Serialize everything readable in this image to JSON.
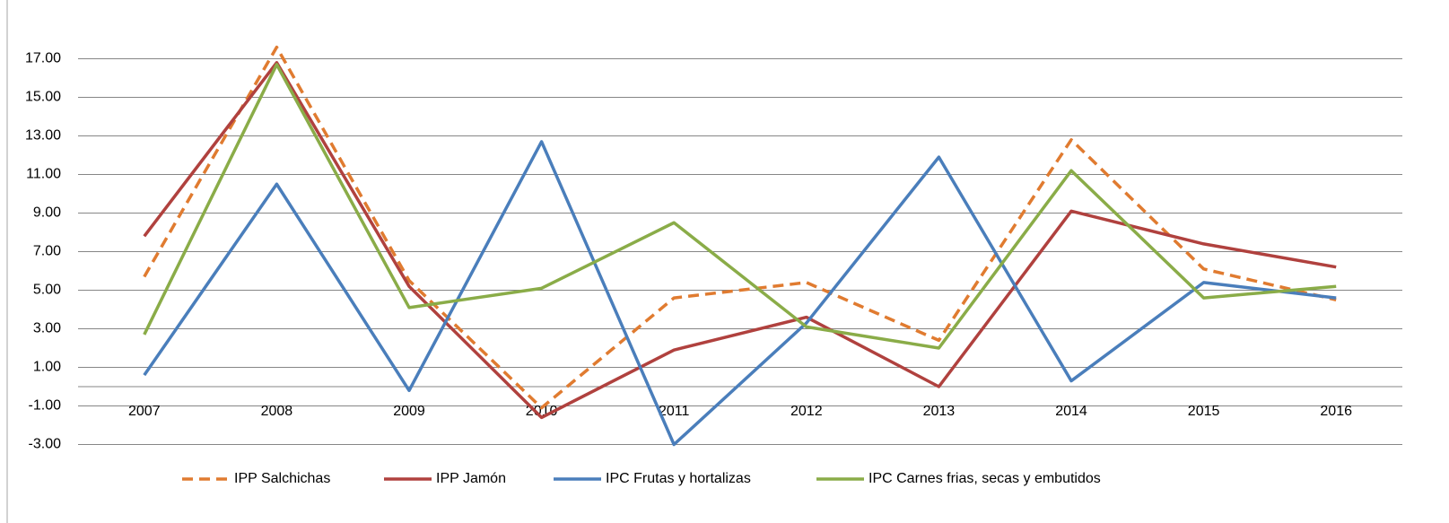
{
  "chart_data": {
    "type": "line",
    "categories": [
      "2007",
      "2008",
      "2009",
      "2010",
      "2011",
      "2012",
      "2013",
      "2014",
      "2015",
      "2016"
    ],
    "series": [
      {
        "name": "IPP Salchichas",
        "color": "#e07b30",
        "dashed": true,
        "values": [
          5.7,
          17.6,
          5.5,
          -1.1,
          4.6,
          5.4,
          2.4,
          12.8,
          6.1,
          4.5
        ]
      },
      {
        "name": "IPP Jamón",
        "color": "#b0413e",
        "dashed": false,
        "values": [
          7.8,
          16.8,
          5.2,
          -1.6,
          1.9,
          3.6,
          0,
          9.1,
          7.4,
          6.2
        ]
      },
      {
        "name": "IPC Frutas y hortalizas",
        "color": "#4a7ebb",
        "dashed": false,
        "values": [
          0.6,
          10.5,
          -0.2,
          12.7,
          -3.0,
          3.3,
          11.9,
          0.3,
          5.4,
          4.6
        ]
      },
      {
        "name": "IPC Carnes frias, secas y embutidos",
        "color": "#8aac48",
        "dashed": false,
        "values": [
          2.7,
          16.7,
          4.1,
          5.1,
          8.5,
          3.1,
          2.0,
          11.2,
          4.6,
          5.2
        ]
      }
    ],
    "ylim": [
      -3,
      19
    ],
    "yticks": [
      {
        "value": -3,
        "label": "-3.00"
      },
      {
        "value": -1,
        "label": "-1.00"
      },
      {
        "value": 1,
        "label": "1.00"
      },
      {
        "value": 3,
        "label": "3.00"
      },
      {
        "value": 5,
        "label": "5.00"
      },
      {
        "value": 7,
        "label": "7.00"
      },
      {
        "value": 9,
        "label": "9.00"
      },
      {
        "value": 11,
        "label": "11.00"
      },
      {
        "value": 13,
        "label": "13.00"
      },
      {
        "value": 15,
        "label": "15.00"
      },
      {
        "value": 17,
        "label": "17.00"
      }
    ],
    "grid": true,
    "legend": "bottom"
  }
}
